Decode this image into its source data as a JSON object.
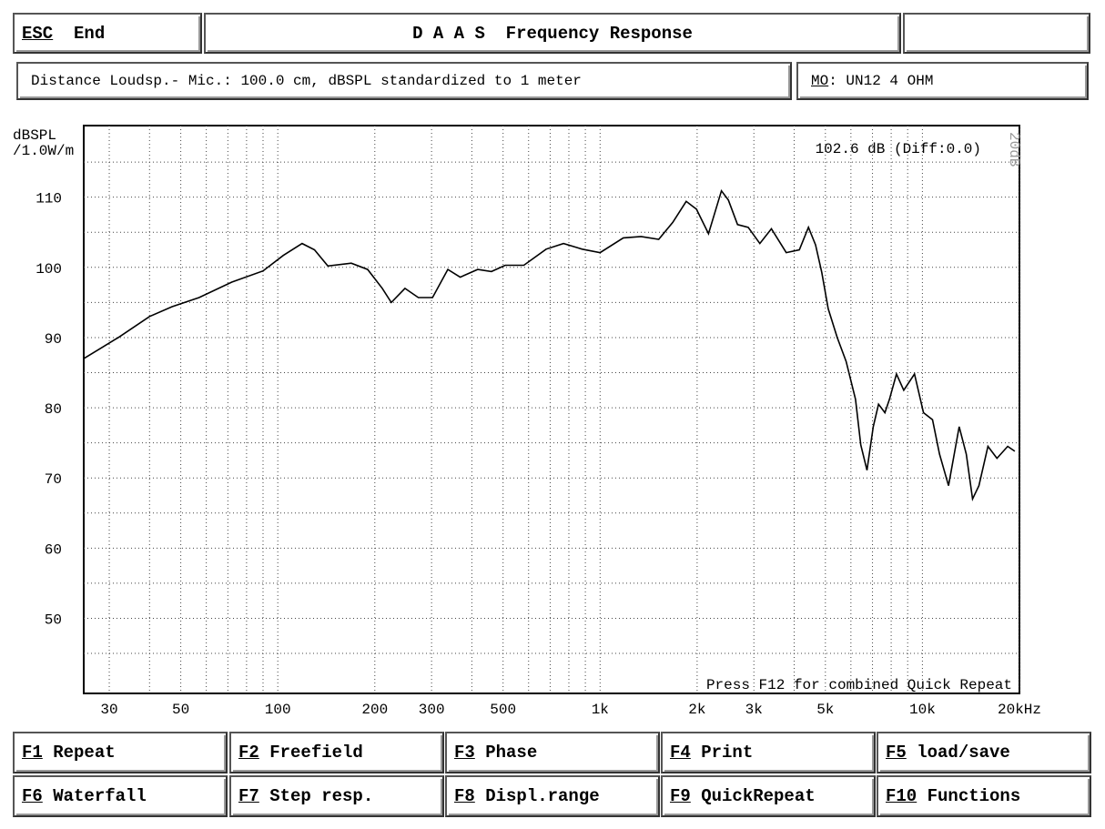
{
  "header": {
    "esc_key": "ESC",
    "esc_label": "End",
    "title": "D A A S  Frequency Response"
  },
  "info": {
    "distance": "Distance Loudsp.- Mic.: 100.0 cm, dBSPL standardized to 1 meter",
    "model_key": "MO",
    "model_label": ": UN12 4 OHM"
  },
  "chart_data": {
    "type": "line",
    "y_label": [
      "dBSPL",
      "/1.0W/m"
    ],
    "color": "#000000",
    "log_x": true,
    "grid": true,
    "xlim": [
      25,
      20000
    ],
    "ylim": [
      39.3,
      120.2
    ],
    "xticks": [
      30,
      50,
      100,
      200,
      300,
      500,
      {
        "value": 1000,
        "label": "1k"
      },
      {
        "value": 2000,
        "label": "2k"
      },
      {
        "value": 3000,
        "label": "3k"
      },
      {
        "value": 5000,
        "label": "5k"
      },
      {
        "value": 10000,
        "label": "10k"
      },
      {
        "value": 20000,
        "label": "20kHz"
      }
    ],
    "yticks": [
      50,
      60,
      70,
      80,
      90,
      100,
      110
    ],
    "xgrid": [
      30,
      40,
      50,
      60,
      70,
      80,
      90,
      100,
      200,
      300,
      400,
      500,
      600,
      700,
      800,
      900,
      1000,
      2000,
      3000,
      4000,
      5000,
      6000,
      7000,
      8000,
      9000,
      10000,
      20000
    ],
    "ygrid": [
      45,
      50,
      55,
      60,
      65,
      70,
      75,
      80,
      85,
      90,
      95,
      100,
      105,
      110,
      115
    ],
    "annotations": {
      "level": "102.6 dB (Diff:0.0)",
      "range": "20dB",
      "hint": "Press F12 for combined Quick Repeat"
    },
    "x": [
      25,
      32,
      40,
      47,
      57,
      72,
      90,
      104,
      119,
      130,
      143,
      169,
      190,
      211,
      225,
      248,
      273,
      302,
      337,
      368,
      417,
      460,
      508,
      580,
      680,
      770,
      880,
      1000,
      1180,
      1340,
      1520,
      1680,
      1850,
      1990,
      2170,
      2380,
      2500,
      2670,
      2880,
      3130,
      3400,
      3780,
      4150,
      4430,
      4660,
      4870,
      5100,
      5440,
      5800,
      6200,
      6440,
      6730,
      7040,
      7310,
      7650,
      7900,
      8310,
      8750,
      9450,
      10080,
      10750,
      11300,
      12050,
      13000,
      13680,
      14310,
      14970,
      15970,
      17030,
      18390,
      19350
    ],
    "values": [
      87,
      90,
      93,
      94.4,
      95.7,
      97.9,
      99.5,
      101.7,
      103.4,
      102.5,
      100.2,
      100.6,
      99.7,
      97,
      95,
      97,
      95.7,
      95.7,
      99.7,
      98.6,
      99.7,
      99.4,
      100.3,
      100.3,
      102.6,
      103.4,
      102.6,
      102.1,
      104.2,
      104.4,
      104,
      106.4,
      109.4,
      108.3,
      104.8,
      110.9,
      109.6,
      106.1,
      105.7,
      103.4,
      105.5,
      102.1,
      102.5,
      105.7,
      103.2,
      99.3,
      94.1,
      90,
      86.6,
      81.2,
      74.7,
      71.1,
      77.3,
      80.5,
      79.3,
      81.2,
      84.8,
      82.5,
      84.8,
      79.3,
      78.3,
      73.4,
      68.9,
      77.3,
      73.4,
      67,
      68.9,
      74.5,
      72.8,
      74.5,
      73.8
    ]
  },
  "buttons": [
    {
      "key": "F1",
      "label": " Repeat"
    },
    {
      "key": "F2",
      "label": " Freefield"
    },
    {
      "key": "F3",
      "label": " Phase"
    },
    {
      "key": "F4",
      "label": " Print"
    },
    {
      "key": "F5",
      "label": " load/save"
    },
    {
      "key": "F6",
      "label": " Waterfall"
    },
    {
      "key": "F7",
      "label": " Step resp."
    },
    {
      "key": "F8",
      "label": " Displ.range"
    },
    {
      "key": "F9",
      "label": " QuickRepeat"
    },
    {
      "key": "F10",
      "label": " Functions"
    }
  ]
}
